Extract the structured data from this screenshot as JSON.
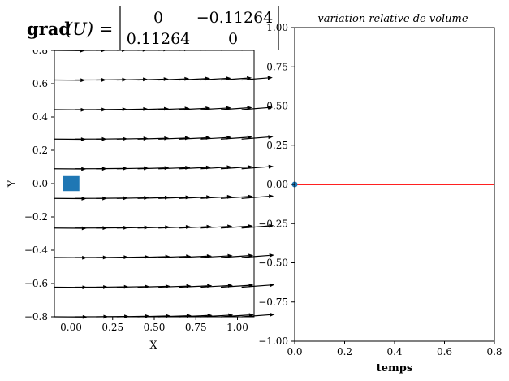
{
  "figure": {
    "left_panel": {
      "title": {
        "lhs_bold": "grad",
        "lhs_rest": "(U) =",
        "matrix": [
          [
            "0",
            "−0.11264"
          ],
          [
            "0.11264",
            "0"
          ]
        ]
      }
    },
    "right_panel": {
      "title": "variation relative de volume"
    }
  },
  "chart_data": [
    {
      "type": "quiver",
      "xlabel": "X",
      "ylabel": "Y",
      "xlim": [
        -0.1,
        1.1
      ],
      "ylim": [
        -0.8,
        0.8
      ],
      "xticks": [
        0.0,
        0.25,
        0.5,
        0.75,
        1.0
      ],
      "xtick_labels": [
        "0.00",
        "0.25",
        "0.50",
        "0.75",
        "1.00"
      ],
      "yticks": [
        -0.8,
        -0.6,
        -0.4,
        -0.2,
        0.0,
        0.2,
        0.4,
        0.6,
        0.8
      ],
      "ytick_labels": [
        "−0.8",
        "−0.6",
        "−0.4",
        "−0.2",
        "0.0",
        "0.2",
        "0.4",
        "0.6",
        "0.8"
      ],
      "grid": false,
      "field": {
        "x": [
          -0.1,
          0.025,
          0.15,
          0.275,
          0.4,
          0.525,
          0.65,
          0.775,
          0.9,
          1.025
        ],
        "y": [
          -0.8,
          -0.622,
          -0.444,
          -0.267,
          -0.089,
          0.089,
          0.267,
          0.444,
          0.622,
          0.8
        ],
        "gradient": [
          [
            0,
            -0.11264
          ],
          [
            0.11264,
            0
          ]
        ],
        "arrow_color": "#000000"
      },
      "marker": {
        "shape": "square",
        "x": 0.0,
        "y": 0.0,
        "size": 0.1,
        "color": "#1f77b4"
      }
    },
    {
      "type": "line",
      "xlabel": "temps",
      "ylabel": "",
      "xlim": [
        0.0,
        0.8
      ],
      "ylim": [
        -1.0,
        1.0
      ],
      "xticks": [
        0.0,
        0.2,
        0.4,
        0.6,
        0.8
      ],
      "xtick_labels": [
        "0.0",
        "0.2",
        "0.4",
        "0.6",
        "0.8"
      ],
      "yticks": [
        -1.0,
        -0.75,
        -0.5,
        -0.25,
        0.0,
        0.25,
        0.5,
        0.75,
        1.0
      ],
      "ytick_labels": [
        "−1.00",
        "−0.75",
        "−0.50",
        "−0.25",
        "0.00",
        "0.25",
        "0.50",
        "0.75",
        "1.00"
      ],
      "grid": false,
      "series": [
        {
          "x": [
            0.0,
            0.8
          ],
          "values": [
            0.0,
            0.0
          ],
          "color": "#ff0000"
        }
      ],
      "point": {
        "x": 0.0,
        "y": 0.0,
        "color": "#1f77b4"
      }
    }
  ]
}
